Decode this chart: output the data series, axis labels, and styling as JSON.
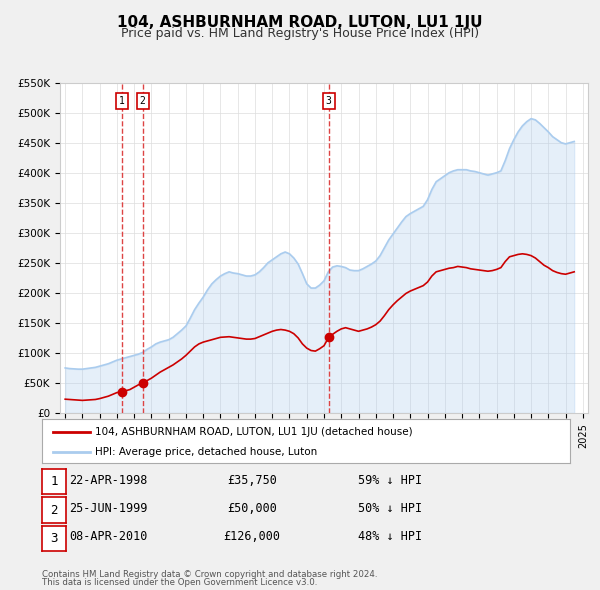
{
  "title": "104, ASHBURNHAM ROAD, LUTON, LU1 1JU",
  "subtitle": "Price paid vs. HM Land Registry's House Price Index (HPI)",
  "bg_color": "#f0f0f0",
  "plot_bg_color": "#ffffff",
  "xlabel": "",
  "ylabel": "",
  "ylim": [
    0,
    550000
  ],
  "ytick_labels": [
    "£0",
    "£50K",
    "£100K",
    "£150K",
    "£200K",
    "£250K",
    "£300K",
    "£350K",
    "£400K",
    "£450K",
    "£500K",
    "£550K"
  ],
  "ytick_values": [
    0,
    50000,
    100000,
    150000,
    200000,
    250000,
    300000,
    350000,
    400000,
    450000,
    500000,
    550000
  ],
  "red_color": "#cc0000",
  "blue_color": "#aaccee",
  "dashed_color": "#dd4444",
  "purchase_marker_color": "#cc0000",
  "legend_box_color": "#ffffff",
  "legend_line1": "104, ASHBURNHAM ROAD, LUTON, LU1 1JU (detached house)",
  "legend_line2": "HPI: Average price, detached house, Luton",
  "transactions": [
    {
      "label": "1",
      "date": "22-APR-1998",
      "price": 35750,
      "pct": "59%",
      "x": 1998.31
    },
    {
      "label": "2",
      "date": "25-JUN-1999",
      "price": 50000,
      "pct": "50%",
      "x": 1999.49
    },
    {
      "label": "3",
      "date": "08-APR-2010",
      "price": 126000,
      "pct": "48%",
      "x": 2010.27
    }
  ],
  "footer1": "Contains HM Land Registry data © Crown copyright and database right 2024.",
  "footer2": "This data is licensed under the Open Government Licence v3.0.",
  "hpi_data": {
    "x": [
      1995.0,
      1995.25,
      1995.5,
      1995.75,
      1996.0,
      1996.25,
      1996.5,
      1996.75,
      1997.0,
      1997.25,
      1997.5,
      1997.75,
      1998.0,
      1998.25,
      1998.5,
      1998.75,
      1999.0,
      1999.25,
      1999.5,
      1999.75,
      2000.0,
      2000.25,
      2000.5,
      2000.75,
      2001.0,
      2001.25,
      2001.5,
      2001.75,
      2002.0,
      2002.25,
      2002.5,
      2002.75,
      2003.0,
      2003.25,
      2003.5,
      2003.75,
      2004.0,
      2004.25,
      2004.5,
      2004.75,
      2005.0,
      2005.25,
      2005.5,
      2005.75,
      2006.0,
      2006.25,
      2006.5,
      2006.75,
      2007.0,
      2007.25,
      2007.5,
      2007.75,
      2008.0,
      2008.25,
      2008.5,
      2008.75,
      2009.0,
      2009.25,
      2009.5,
      2009.75,
      2010.0,
      2010.25,
      2010.5,
      2010.75,
      2011.0,
      2011.25,
      2011.5,
      2011.75,
      2012.0,
      2012.25,
      2012.5,
      2012.75,
      2013.0,
      2013.25,
      2013.5,
      2013.75,
      2014.0,
      2014.25,
      2014.5,
      2014.75,
      2015.0,
      2015.25,
      2015.5,
      2015.75,
      2016.0,
      2016.25,
      2016.5,
      2016.75,
      2017.0,
      2017.25,
      2017.5,
      2017.75,
      2018.0,
      2018.25,
      2018.5,
      2018.75,
      2019.0,
      2019.25,
      2019.5,
      2019.75,
      2020.0,
      2020.25,
      2020.5,
      2020.75,
      2021.0,
      2021.25,
      2021.5,
      2021.75,
      2022.0,
      2022.25,
      2022.5,
      2022.75,
      2023.0,
      2023.25,
      2023.5,
      2023.75,
      2024.0,
      2024.25,
      2024.5
    ],
    "y": [
      75000,
      74000,
      73500,
      73000,
      73000,
      74000,
      75000,
      76000,
      78000,
      80000,
      82000,
      85000,
      88000,
      90000,
      92000,
      94000,
      96000,
      98000,
      101000,
      106000,
      110000,
      115000,
      118000,
      120000,
      122000,
      126000,
      132000,
      138000,
      145000,
      158000,
      172000,
      183000,
      193000,
      205000,
      215000,
      222000,
      228000,
      232000,
      235000,
      233000,
      232000,
      230000,
      228000,
      228000,
      230000,
      235000,
      242000,
      250000,
      255000,
      260000,
      265000,
      268000,
      265000,
      258000,
      248000,
      232000,
      215000,
      208000,
      208000,
      213000,
      220000,
      235000,
      243000,
      245000,
      244000,
      242000,
      238000,
      237000,
      237000,
      240000,
      244000,
      248000,
      253000,
      262000,
      275000,
      288000,
      298000,
      308000,
      318000,
      327000,
      332000,
      336000,
      340000,
      344000,
      355000,
      372000,
      385000,
      390000,
      395000,
      400000,
      403000,
      405000,
      405000,
      405000,
      403000,
      402000,
      400000,
      398000,
      396000,
      398000,
      400000,
      403000,
      420000,
      440000,
      455000,
      468000,
      478000,
      485000,
      490000,
      488000,
      482000,
      475000,
      468000,
      460000,
      455000,
      450000,
      448000,
      450000,
      452000
    ]
  },
  "red_data": {
    "x": [
      1995.0,
      1995.25,
      1995.5,
      1995.75,
      1996.0,
      1996.25,
      1996.5,
      1996.75,
      1997.0,
      1997.25,
      1997.5,
      1997.75,
      1998.0,
      1998.25,
      1998.31,
      1998.31,
      1998.5,
      1998.75,
      1999.0,
      1999.25,
      1999.49,
      1999.49,
      1999.75,
      2000.0,
      2000.25,
      2000.5,
      2000.75,
      2001.0,
      2001.25,
      2001.5,
      2001.75,
      2002.0,
      2002.25,
      2002.5,
      2002.75,
      2003.0,
      2003.25,
      2003.5,
      2003.75,
      2004.0,
      2004.25,
      2004.5,
      2004.75,
      2005.0,
      2005.25,
      2005.5,
      2005.75,
      2006.0,
      2006.25,
      2006.5,
      2006.75,
      2007.0,
      2007.25,
      2007.5,
      2007.75,
      2008.0,
      2008.25,
      2008.5,
      2008.75,
      2009.0,
      2009.25,
      2009.5,
      2009.75,
      2010.0,
      2010.27,
      2010.27,
      2010.5,
      2010.75,
      2011.0,
      2011.25,
      2011.5,
      2011.75,
      2012.0,
      2012.25,
      2012.5,
      2012.75,
      2013.0,
      2013.25,
      2013.5,
      2013.75,
      2014.0,
      2014.25,
      2014.5,
      2014.75,
      2015.0,
      2015.25,
      2015.5,
      2015.75,
      2016.0,
      2016.25,
      2016.5,
      2016.75,
      2017.0,
      2017.25,
      2017.5,
      2017.75,
      2018.0,
      2018.25,
      2018.5,
      2018.75,
      2019.0,
      2019.25,
      2019.5,
      2019.75,
      2020.0,
      2020.25,
      2020.5,
      2020.75,
      2021.0,
      2021.25,
      2021.5,
      2021.75,
      2022.0,
      2022.25,
      2022.5,
      2022.75,
      2023.0,
      2023.25,
      2023.5,
      2023.75,
      2024.0,
      2024.25,
      2024.5
    ],
    "y": [
      23000,
      22500,
      22000,
      21500,
      21000,
      21500,
      22000,
      22500,
      24000,
      26000,
      28000,
      31000,
      34000,
      35000,
      35750,
      35750,
      37000,
      39000,
      43000,
      47000,
      50000,
      50000,
      54000,
      58000,
      63000,
      68000,
      72000,
      76000,
      80000,
      85000,
      90000,
      96000,
      103000,
      110000,
      115000,
      118000,
      120000,
      122000,
      124000,
      126000,
      126500,
      127000,
      126000,
      125000,
      124000,
      123000,
      123000,
      124000,
      127000,
      130000,
      133000,
      136000,
      138000,
      139000,
      138000,
      136000,
      132000,
      125000,
      115000,
      108000,
      104000,
      103000,
      107000,
      112000,
      126000,
      126000,
      131000,
      136000,
      140000,
      142000,
      140000,
      138000,
      136000,
      138000,
      140000,
      143000,
      147000,
      153000,
      162000,
      172000,
      180000,
      187000,
      193000,
      199000,
      203000,
      206000,
      209000,
      212000,
      218000,
      228000,
      235000,
      237000,
      239000,
      241000,
      242000,
      244000,
      243000,
      242000,
      240000,
      239000,
      238000,
      237000,
      236000,
      237000,
      239000,
      242000,
      252000,
      260000,
      262000,
      264000,
      265000,
      264000,
      262000,
      258000,
      252000,
      246000,
      242000,
      237000,
      234000,
      232000,
      231000,
      233000,
      235000
    ]
  }
}
